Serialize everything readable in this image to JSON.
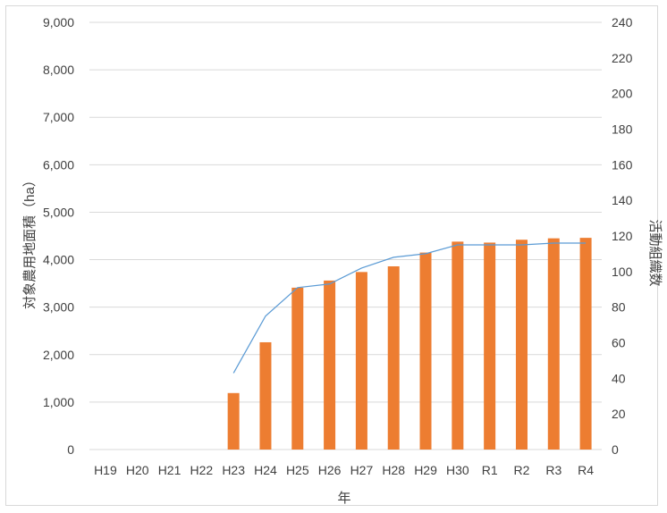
{
  "chart_data": {
    "type": "bar",
    "title": "",
    "categories": [
      "H19",
      "H20",
      "H21",
      "H22",
      "H23",
      "H24",
      "H25",
      "H26",
      "H27",
      "H28",
      "H29",
      "H30",
      "R1",
      "R2",
      "R3",
      "R4"
    ],
    "xlabel": "年",
    "ylabel_left": "対象農用地面積（ha）",
    "ylabel_right": "活動組織数",
    "ylim_left": [
      0,
      9000
    ],
    "yticks_left": [
      "0",
      "1,000",
      "2,000",
      "3,000",
      "4,000",
      "5,000",
      "6,000",
      "7,000",
      "8,000",
      "9,000"
    ],
    "ylim_right": [
      0,
      240
    ],
    "yticks_right": [
      "0",
      "20",
      "40",
      "60",
      "80",
      "100",
      "120",
      "140",
      "160",
      "180",
      "200",
      "220",
      "240"
    ],
    "grid": true,
    "series": [
      {
        "kind": "bar",
        "axis": "left",
        "color": "#ED7D31",
        "values": [
          null,
          null,
          null,
          null,
          1190,
          2260,
          3410,
          3560,
          3740,
          3860,
          4150,
          4380,
          4360,
          4420,
          4450,
          4460
        ]
      },
      {
        "kind": "line",
        "axis": "right",
        "color": "#5B9BD5",
        "values": [
          null,
          null,
          null,
          null,
          43,
          75,
          91,
          93,
          102,
          108,
          110,
          115,
          115,
          115,
          116,
          116
        ]
      }
    ]
  }
}
